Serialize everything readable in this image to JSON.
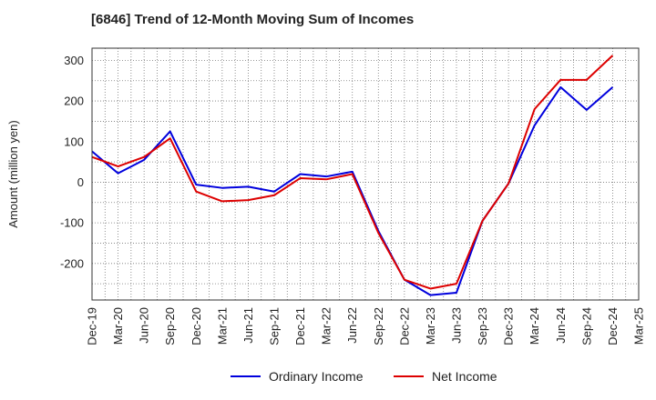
{
  "chart_data": {
    "type": "line",
    "title": "[6846]  Trend of 12-Month Moving Sum of Incomes",
    "xlabel": "",
    "ylabel": "Amount (million yen)",
    "ylim": [
      -290,
      330
    ],
    "yticks": [
      -200,
      -100,
      0,
      100,
      200,
      300
    ],
    "categories": [
      "Dec-19",
      "Mar-20",
      "Jun-20",
      "Sep-20",
      "Dec-20",
      "Mar-21",
      "Jun-21",
      "Sep-21",
      "Dec-21",
      "Mar-22",
      "Jun-22",
      "Sep-22",
      "Dec-22",
      "Mar-23",
      "Jun-23",
      "Sep-23",
      "Dec-23",
      "Mar-24",
      "Jun-24",
      "Sep-24",
      "Dec-24",
      "Mar-25"
    ],
    "grid": true,
    "legend_position": "bottom",
    "series": [
      {
        "name": "Ordinary Income",
        "color": "#0000dd",
        "values": [
          76,
          22,
          55,
          125,
          -6,
          -14,
          -11,
          -23,
          20,
          14,
          26,
          -120,
          -240,
          -278,
          -272,
          -95,
          -3,
          140,
          234,
          178,
          234,
          null
        ]
      },
      {
        "name": "Net Income",
        "color": "#dd0000",
        "values": [
          62,
          39,
          62,
          108,
          -23,
          -47,
          -44,
          -32,
          10,
          7,
          20,
          -125,
          -240,
          -262,
          -250,
          -95,
          -3,
          180,
          252,
          252,
          312,
          null
        ]
      }
    ]
  }
}
